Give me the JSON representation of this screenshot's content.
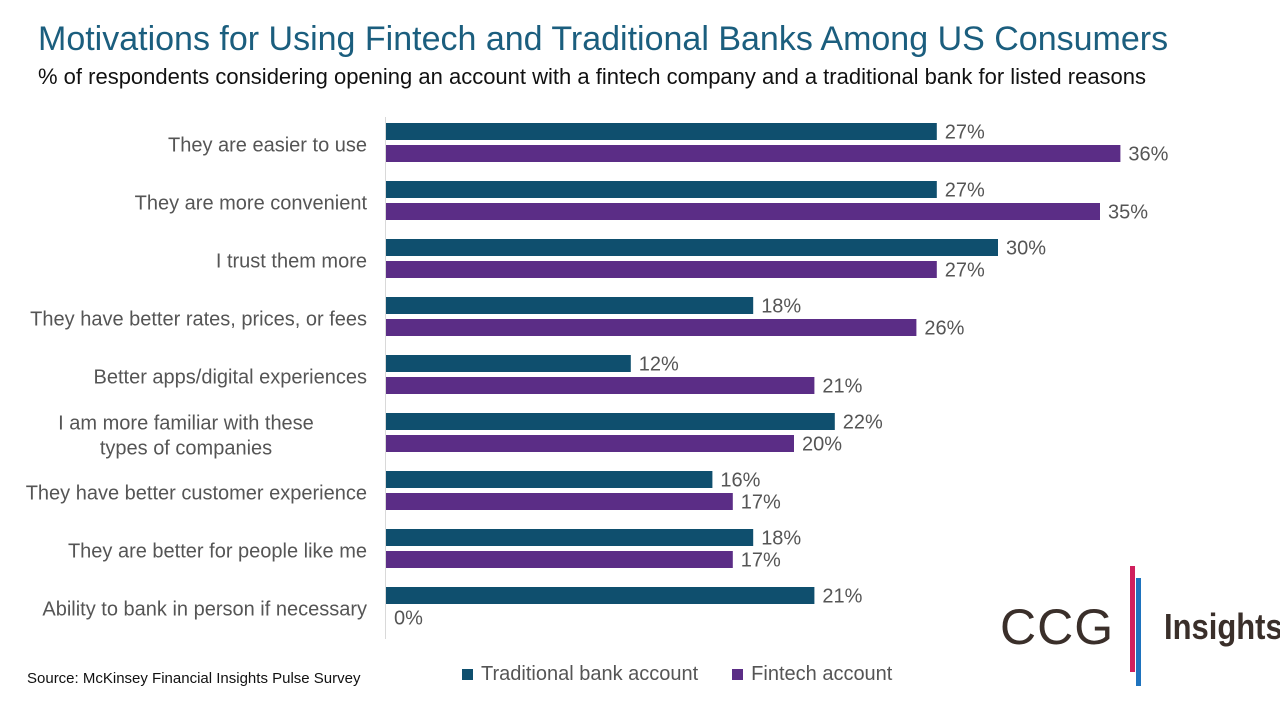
{
  "title": "Motivations for Using Fintech and Traditional Banks Among US Consumers",
  "subtitle": "% of respondents considering opening an account with a fintech company and a traditional bank for listed reasons",
  "source": "Source: McKinsey Financial Insights Pulse Survey",
  "logo": {
    "left": "CCG",
    "right": "Insights"
  },
  "colors": {
    "traditional": "#0f4f6e",
    "fintech": "#5b2d86"
  },
  "chart_data": {
    "type": "bar",
    "orientation": "horizontal",
    "categories": [
      "They are easier to use",
      "They are more convenient",
      "I trust them more",
      "They have better rates, prices, or fees",
      "Better apps/digital experiences",
      "I am more familiar with these types of companies",
      "They have better customer experience",
      "They are better for people like me",
      "Ability to bank in person if necessary"
    ],
    "series": [
      {
        "name": "Traditional bank account",
        "values": [
          27,
          27,
          30,
          18,
          12,
          22,
          16,
          18,
          21
        ]
      },
      {
        "name": "Fintech account",
        "values": [
          36,
          35,
          27,
          26,
          21,
          20,
          17,
          17,
          0
        ]
      }
    ],
    "value_suffix": "%",
    "xlim": [
      0,
      40
    ],
    "legend_position": "bottom",
    "grid": false
  }
}
